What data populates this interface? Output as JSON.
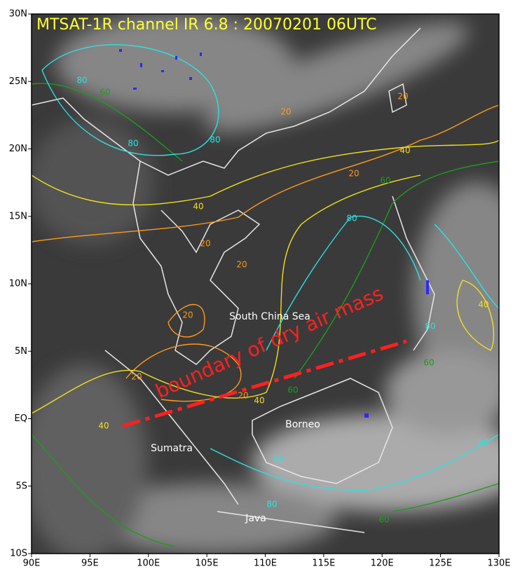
{
  "map": {
    "title": "MTSAT-1R channel IR 6.8 : 20070201 06UTC",
    "xlim": [
      90,
      130
    ],
    "ylim": [
      -10,
      30
    ],
    "xticks": [
      {
        "value": 90,
        "label": "90E"
      },
      {
        "value": 95,
        "label": "95E"
      },
      {
        "value": 100,
        "label": "100E"
      },
      {
        "value": 105,
        "label": "105E"
      },
      {
        "value": 110,
        "label": "110E"
      },
      {
        "value": 115,
        "label": "115E"
      },
      {
        "value": 120,
        "label": "120E"
      },
      {
        "value": 125,
        "label": "125E"
      },
      {
        "value": 130,
        "label": "130E"
      }
    ],
    "yticks": [
      {
        "value": 30,
        "label": "30N"
      },
      {
        "value": 25,
        "label": "25N"
      },
      {
        "value": 20,
        "label": "20N"
      },
      {
        "value": 15,
        "label": "15N"
      },
      {
        "value": 10,
        "label": "10N"
      },
      {
        "value": 5,
        "label": "5N"
      },
      {
        "value": 0,
        "label": "EQ"
      },
      {
        "value": -5,
        "label": "5S"
      },
      {
        "value": -10,
        "label": "10S"
      }
    ],
    "places": [
      "South China Sea",
      "Borneo",
      "Sumatra",
      "Java"
    ],
    "annotation": "boundary of dry air mass",
    "annotation_color": "#ff2020",
    "title_color": "#ffff33",
    "contour_levels": [
      {
        "value": 20,
        "color": "#ff9a1a"
      },
      {
        "value": 40,
        "color": "#f0e020"
      },
      {
        "value": 60,
        "color": "#1f9a1f"
      },
      {
        "value": 80,
        "color": "#2fe0e0"
      }
    ],
    "contour_labels": [
      20,
      20,
      40,
      20,
      40,
      20,
      20,
      20,
      20,
      20,
      40,
      40,
      40,
      80,
      80,
      80,
      80,
      60,
      60,
      60,
      80,
      80,
      60,
      80,
      60,
      80
    ]
  }
}
